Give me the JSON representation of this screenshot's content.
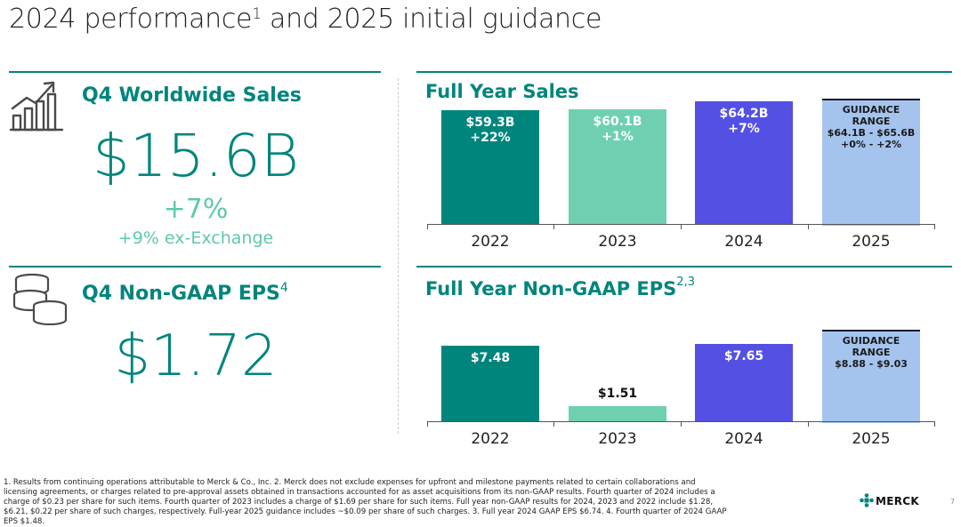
{
  "title": {
    "main": "2024 performance",
    "sup": "1",
    "rest": " and 2025 initial guidance"
  },
  "q4_sales": {
    "heading": "Q4 Worldwide Sales",
    "value": "$15.6B",
    "growth": "+7%",
    "ex_fx": "+9% ex-Exchange"
  },
  "q4_eps": {
    "heading": "Q4 Non-GAAP EPS",
    "sup": "4",
    "value": "$1.72"
  },
  "sales_chart_title": "Full Year Sales",
  "eps_chart_title": "Full Year Non-GAAP EPS",
  "eps_chart_sup": "2,3",
  "chart_data": [
    {
      "type": "bar",
      "title": "Full Year Sales",
      "categories": [
        "2022",
        "2023",
        "2024",
        "2025"
      ],
      "values": [
        59.3,
        60.1,
        64.2,
        65.6
      ],
      "labels": [
        [
          "$59.3B",
          "+22%"
        ],
        [
          "$60.1B",
          "+1%"
        ],
        [
          "$64.2B",
          "+7%"
        ],
        [
          "GUIDANCE RANGE",
          "$64.1B - $65.6B",
          "+0% - +2%"
        ]
      ],
      "colors": [
        "#00857c",
        "#6fd0b1",
        "#5450e4",
        "#a4c4ee"
      ],
      "ylim": [
        0,
        66
      ]
    },
    {
      "type": "bar",
      "title": "Full Year Non-GAAP EPS",
      "categories": [
        "2022",
        "2023",
        "2024",
        "2025"
      ],
      "values": [
        7.48,
        1.51,
        7.65,
        9.03
      ],
      "labels": [
        [
          "$7.48"
        ],
        [
          "$1.51"
        ],
        [
          "$7.65"
        ],
        [
          "GUIDANCE RANGE",
          "$8.88 - $9.03"
        ]
      ],
      "colors": [
        "#00857c",
        "#6fd0b1",
        "#5450e4",
        "#a4c4ee"
      ],
      "ylim": [
        0,
        10
      ]
    }
  ],
  "footnote": "1. Results from continuing operations attributable to Merck & Co., Inc.  2. Merck does not exclude expenses for upfront and milestone payments related to certain collaborations and licensing agreements, or charges related to pre-approval assets obtained in transactions accounted for as asset acquisitions from its non-GAAP results. Fourth quarter of 2024 includes a charge of $0.23 per share for such items. Fourth quarter of 2023 includes a charge of $1.69 per share for such items.  Full year non-GAAP results for 2024, 2023 and 2022 include $1.28, $6.21, $0.22 per share of such charges, respectively. Full-year 2025 guidance includes ~$0.09 per share of such charges.  3. Full year 2024 GAAP EPS $6.74.  4. Fourth quarter of 2024 GAAP EPS $1.48.",
  "logo": "MERCK",
  "page_number": "7"
}
